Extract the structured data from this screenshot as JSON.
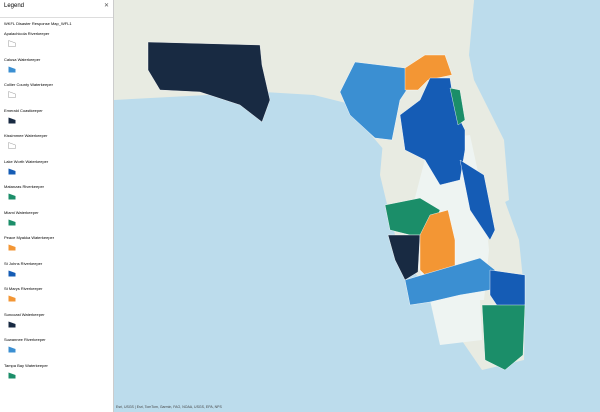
{
  "legend": {
    "header": "Legend",
    "layer_title": "WKFL Disaster Response Map_WFL1",
    "items": [
      {
        "label": "Apalachicola Riverkeeper",
        "color": null
      },
      {
        "label": "Calusa Waterkeeper",
        "color": "#3b8fd2"
      },
      {
        "label": "Collier County Waterkeeper",
        "color": null
      },
      {
        "label": "Emerald Coastkeeper",
        "color": "#182a42"
      },
      {
        "label": "Kissimmee Waterkeeper",
        "color": null
      },
      {
        "label": "Lake Worth Waterkeeper",
        "color": "#155cb5"
      },
      {
        "label": "Matanzas Riverkeeper",
        "color": "#1b8e69"
      },
      {
        "label": "Miami Waterkeeper",
        "color": "#1b8e69"
      },
      {
        "label": "Peace Myakka Waterkeeper",
        "color": "#f39634"
      },
      {
        "label": "St Johns Riverkeeper",
        "color": "#155cb5"
      },
      {
        "label": "St Marys Riverkeeper",
        "color": "#f39634"
      },
      {
        "label": "Suncoast Waterkeeper",
        "color": "#182a42"
      },
      {
        "label": "Suwannee Riverkeeper",
        "color": "#3b8fd2"
      },
      {
        "label": "Tampa Bay Waterkeeper",
        "color": "#1b8e69"
      }
    ]
  },
  "map": {
    "attribution": "Esri, USGS | Esri, TomTom, Garmin, FAO, NOAA, USGS, EPA, NPS"
  }
}
